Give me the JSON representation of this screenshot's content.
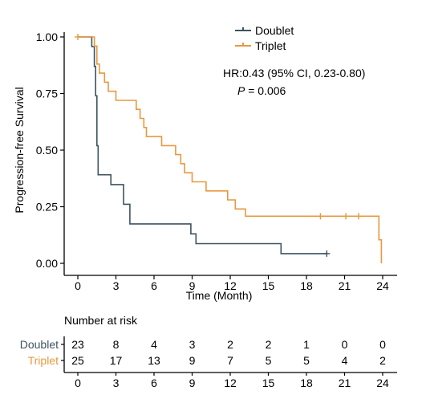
{
  "chart_data": {
    "type": "line",
    "subtype": "kaplan-meier step curve",
    "title": "",
    "xlabel": "Time (Month)",
    "ylabel": "Progression-free Survival",
    "xlim": [
      0,
      24
    ],
    "ylim": [
      0,
      1
    ],
    "x_ticks": [
      0,
      3,
      6,
      9,
      12,
      15,
      18,
      21,
      24
    ],
    "y_ticks": [
      "0.00",
      "0.25",
      "0.50",
      "0.75",
      "1.00"
    ],
    "grid": false,
    "legend": {
      "placement": "top-right",
      "entries": [
        "Doublet",
        "Triplet"
      ]
    },
    "annotation": {
      "hr_text": "HR:0.43 (95% CI, 0.23-0.80)",
      "p_label": "P",
      "p_value": "= 0.006"
    },
    "series": [
      {
        "name": "Doublet",
        "color": "#3d5360",
        "steps": [
          [
            0,
            1.0
          ],
          [
            1.1,
            0.957
          ],
          [
            1.3,
            0.87
          ],
          [
            1.4,
            0.74
          ],
          [
            1.5,
            0.52
          ],
          [
            1.6,
            0.391
          ],
          [
            2.6,
            0.348
          ],
          [
            3.6,
            0.261
          ],
          [
            4.1,
            0.174
          ],
          [
            8.9,
            0.13
          ],
          [
            9.3,
            0.087
          ],
          [
            16.0,
            0.043
          ],
          [
            19.6,
            0.043
          ]
        ],
        "censored": [
          [
            19.6,
            0.043
          ]
        ]
      },
      {
        "name": "Triplet",
        "color": "#e8993f",
        "steps": [
          [
            0,
            1.0
          ],
          [
            1.3,
            0.96
          ],
          [
            1.5,
            0.88
          ],
          [
            1.7,
            0.84
          ],
          [
            2.1,
            0.8
          ],
          [
            2.4,
            0.76
          ],
          [
            3.0,
            0.72
          ],
          [
            4.6,
            0.68
          ],
          [
            4.9,
            0.64
          ],
          [
            5.2,
            0.6
          ],
          [
            5.4,
            0.56
          ],
          [
            6.6,
            0.52
          ],
          [
            7.7,
            0.48
          ],
          [
            8.1,
            0.44
          ],
          [
            8.4,
            0.4
          ],
          [
            9.0,
            0.36
          ],
          [
            10.1,
            0.32
          ],
          [
            11.8,
            0.28
          ],
          [
            12.4,
            0.24
          ],
          [
            13.2,
            0.208
          ],
          [
            23.7,
            0.104
          ],
          [
            23.9,
            0.0
          ]
        ],
        "censored": [
          [
            0,
            1.0
          ],
          [
            19.1,
            0.208
          ],
          [
            21.1,
            0.208
          ],
          [
            22.1,
            0.208
          ]
        ]
      }
    ],
    "risk_table": {
      "title": "Number at risk",
      "times": [
        0,
        3,
        6,
        9,
        12,
        15,
        18,
        21,
        24
      ],
      "rows": [
        {
          "name": "Doublet",
          "color": "#3d5360",
          "counts": [
            "23",
            "8",
            "4",
            "3",
            "2",
            "2",
            "1",
            "0",
            "0"
          ]
        },
        {
          "name": "Triplet",
          "color": "#e8993f",
          "counts": [
            "25",
            "17",
            "13",
            "9",
            "7",
            "5",
            "5",
            "4",
            "2"
          ]
        }
      ]
    }
  }
}
